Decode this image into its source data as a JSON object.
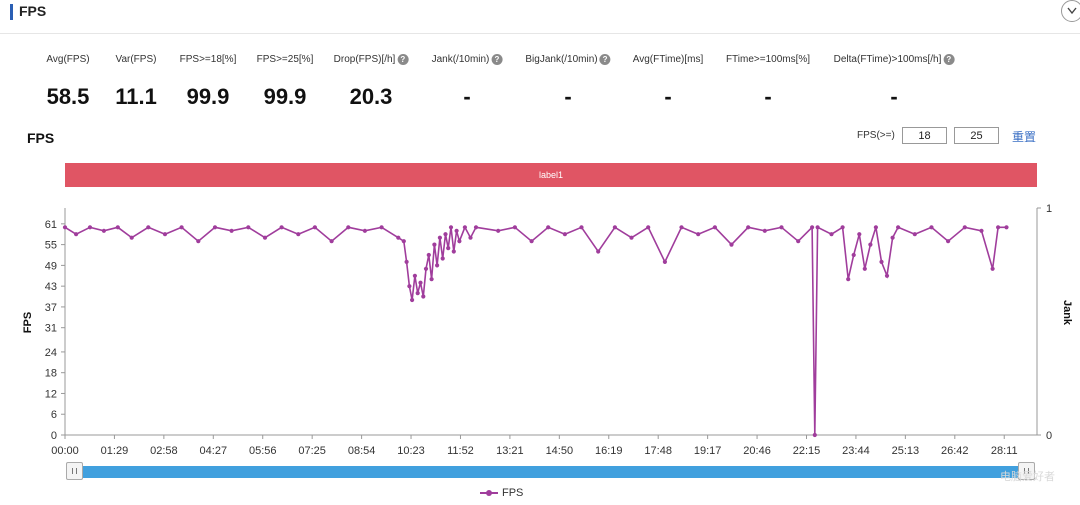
{
  "header": {
    "title": "FPS"
  },
  "stats": [
    {
      "label": "Avg(FPS)",
      "value": "58.5",
      "help": false
    },
    {
      "label": "Var(FPS)",
      "value": "11.1",
      "help": false
    },
    {
      "label": "FPS>=18[%]",
      "value": "99.9",
      "help": false
    },
    {
      "label": "FPS>=25[%]",
      "value": "99.9",
      "help": false
    },
    {
      "label": "Drop(FPS)[/h]",
      "value": "20.3",
      "help": true
    },
    {
      "label": "Jank(/10min)",
      "value": "-",
      "help": true
    },
    {
      "label": "BigJank(/10min)",
      "value": "-",
      "help": true
    },
    {
      "label": "Avg(FTime)[ms]",
      "value": "-",
      "help": false
    },
    {
      "label": "FTime>=100ms[%]",
      "value": "-",
      "help": false
    },
    {
      "label": "Delta(FTime)>100ms[/h]",
      "value": "-",
      "help": true
    }
  ],
  "help_glyph": "?",
  "chart_title": "FPS",
  "threshold": {
    "label": "FPS(>=)",
    "value1": "18",
    "value2": "25",
    "reset": "重置"
  },
  "label_band": "label1",
  "legend": {
    "label": "FPS"
  },
  "watermark": "电脑爱好者",
  "colors": {
    "series": "#a03d9c",
    "label_band": "#e05564",
    "scrollbar": "#41a0de",
    "reset_link": "#3a6fc4"
  },
  "icons": {
    "collapse": "chevron-down-icon",
    "help": "question-circle-icon",
    "scroll_grip": "grip-icon"
  },
  "chart_data": {
    "type": "line",
    "title": "FPS",
    "ylabel": "FPS",
    "y2label": "Jank",
    "yticks": [
      0,
      6,
      12,
      18,
      24,
      31,
      37,
      43,
      49,
      55,
      61
    ],
    "ylim": [
      0,
      65
    ],
    "y2ticks": [
      0,
      1
    ],
    "y2lim": [
      0,
      1
    ],
    "xticks": [
      "00:00",
      "01:29",
      "02:58",
      "04:27",
      "05:56",
      "07:25",
      "08:54",
      "10:23",
      "11:52",
      "13:21",
      "14:50",
      "16:19",
      "17:48",
      "19:17",
      "20:46",
      "22:15",
      "23:44",
      "25:13",
      "26:42",
      "28:11"
    ],
    "x_unit": "seconds",
    "grid": false,
    "legend_position": "bottom",
    "series": [
      {
        "name": "FPS",
        "points": [
          [
            0,
            60
          ],
          [
            20,
            58
          ],
          [
            45,
            60
          ],
          [
            70,
            59
          ],
          [
            95,
            60
          ],
          [
            120,
            57
          ],
          [
            150,
            60
          ],
          [
            180,
            58
          ],
          [
            210,
            60
          ],
          [
            240,
            56
          ],
          [
            270,
            60
          ],
          [
            300,
            59
          ],
          [
            330,
            60
          ],
          [
            360,
            57
          ],
          [
            390,
            60
          ],
          [
            420,
            58
          ],
          [
            450,
            60
          ],
          [
            480,
            56
          ],
          [
            510,
            60
          ],
          [
            540,
            59
          ],
          [
            570,
            60
          ],
          [
            600,
            57
          ],
          [
            610,
            56
          ],
          [
            615,
            50
          ],
          [
            620,
            43
          ],
          [
            625,
            39
          ],
          [
            630,
            46
          ],
          [
            635,
            41
          ],
          [
            640,
            44
          ],
          [
            645,
            40
          ],
          [
            650,
            48
          ],
          [
            655,
            52
          ],
          [
            660,
            45
          ],
          [
            665,
            55
          ],
          [
            670,
            49
          ],
          [
            675,
            57
          ],
          [
            680,
            51
          ],
          [
            685,
            58
          ],
          [
            690,
            54
          ],
          [
            695,
            60
          ],
          [
            700,
            53
          ],
          [
            705,
            59
          ],
          [
            710,
            56
          ],
          [
            720,
            60
          ],
          [
            730,
            57
          ],
          [
            740,
            60
          ],
          [
            780,
            59
          ],
          [
            810,
            60
          ],
          [
            840,
            56
          ],
          [
            870,
            60
          ],
          [
            900,
            58
          ],
          [
            930,
            60
          ],
          [
            960,
            53
          ],
          [
            990,
            60
          ],
          [
            1020,
            57
          ],
          [
            1050,
            60
          ],
          [
            1080,
            50
          ],
          [
            1110,
            60
          ],
          [
            1140,
            58
          ],
          [
            1170,
            60
          ],
          [
            1200,
            55
          ],
          [
            1230,
            60
          ],
          [
            1260,
            59
          ],
          [
            1290,
            60
          ],
          [
            1320,
            56
          ],
          [
            1345,
            60
          ],
          [
            1350,
            0
          ],
          [
            1355,
            60
          ],
          [
            1380,
            58
          ],
          [
            1400,
            60
          ],
          [
            1410,
            45
          ],
          [
            1420,
            52
          ],
          [
            1430,
            58
          ],
          [
            1440,
            48
          ],
          [
            1450,
            55
          ],
          [
            1460,
            60
          ],
          [
            1470,
            50
          ],
          [
            1480,
            46
          ],
          [
            1490,
            57
          ],
          [
            1500,
            60
          ],
          [
            1530,
            58
          ],
          [
            1560,
            60
          ],
          [
            1590,
            56
          ],
          [
            1620,
            60
          ],
          [
            1650,
            59
          ],
          [
            1670,
            48
          ],
          [
            1680,
            60
          ],
          [
            1695,
            60
          ]
        ]
      }
    ]
  }
}
